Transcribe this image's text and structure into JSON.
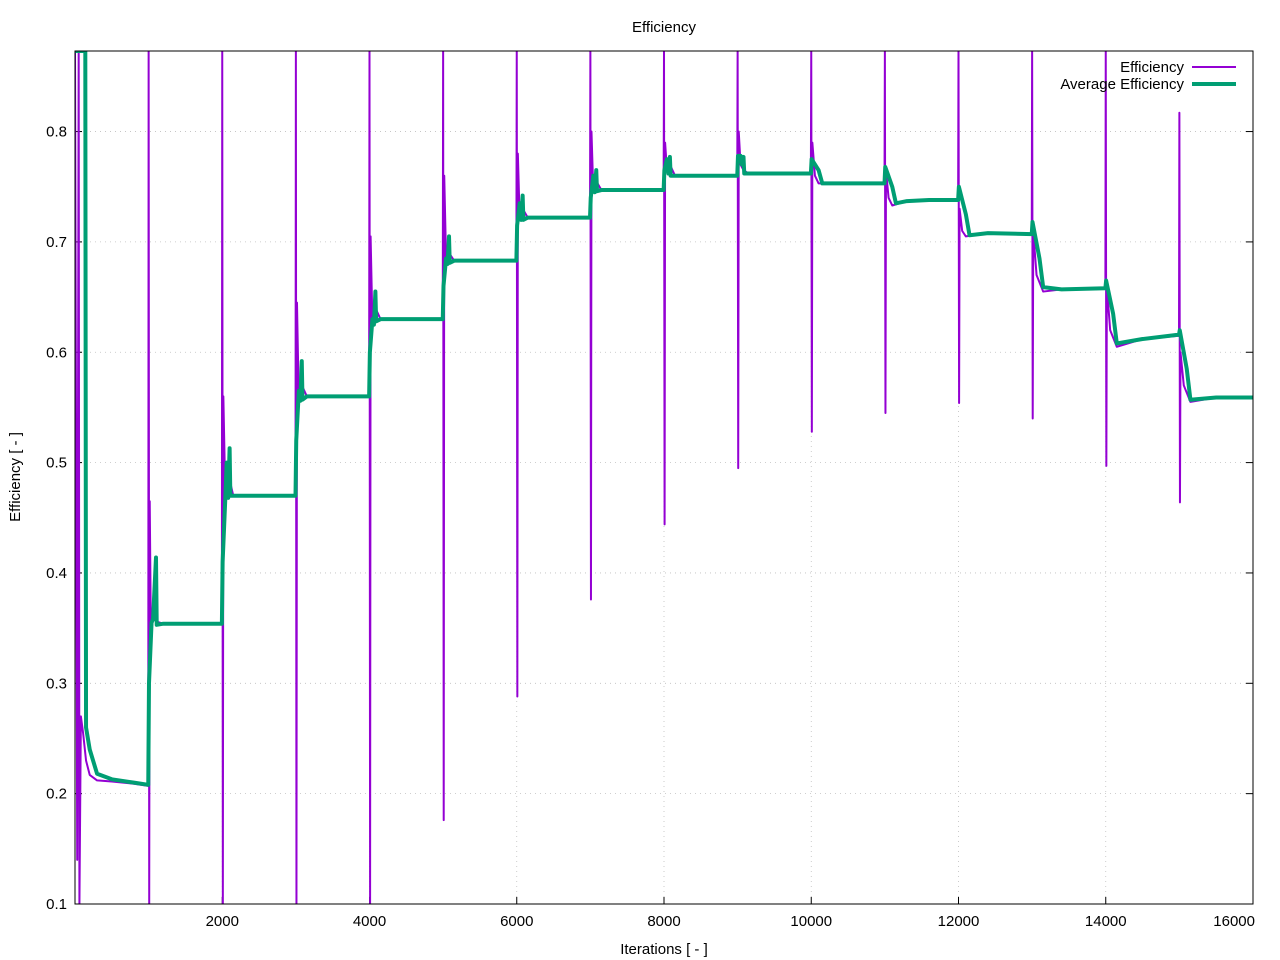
{
  "chart_data": {
    "type": "line",
    "title": "Efficiency",
    "xlabel": "Iterations [ - ]",
    "ylabel": "Efficiency [ - ]",
    "xlim": [
      0,
      16000
    ],
    "ylim": [
      0.1,
      0.873
    ],
    "x_ticks": [
      2000,
      4000,
      6000,
      8000,
      10000,
      12000,
      14000,
      16000
    ],
    "x_tick_labels": [
      "2000",
      "4000",
      "6000",
      "8000",
      "10000",
      "12000",
      "14000",
      "16000"
    ],
    "y_ticks": [
      0.1,
      0.2,
      0.3,
      0.4,
      0.5,
      0.6,
      0.7,
      0.8
    ],
    "y_tick_labels": [
      "0.1",
      "0.2",
      "0.3",
      "0.4",
      "0.5",
      "0.6",
      "0.7",
      "0.8"
    ],
    "grid": true,
    "legend_position": "top-right",
    "series": [
      {
        "name": "Efficiency",
        "color": "#9400d3",
        "points": [
          [
            0,
            0.873
          ],
          [
            30,
            0.14
          ],
          [
            50,
            0.873
          ],
          [
            60,
            0.1
          ],
          [
            80,
            0.27
          ],
          [
            110,
            0.255
          ],
          [
            150,
            0.23
          ],
          [
            200,
            0.217
          ],
          [
            300,
            0.212
          ],
          [
            500,
            0.211
          ],
          [
            800,
            0.209
          ],
          [
            995,
            0.207
          ],
          [
            1000,
            0.873
          ],
          [
            1008,
            0.1
          ],
          [
            1015,
            0.465
          ],
          [
            1030,
            0.35
          ],
          [
            1060,
            0.37
          ],
          [
            1100,
            0.356
          ],
          [
            1200,
            0.354
          ],
          [
            1995,
            0.354
          ],
          [
            2000,
            0.873
          ],
          [
            2008,
            0.1
          ],
          [
            2015,
            0.56
          ],
          [
            2040,
            0.475
          ],
          [
            2080,
            0.49
          ],
          [
            2150,
            0.47
          ],
          [
            2995,
            0.47
          ],
          [
            3000,
            0.873
          ],
          [
            3008,
            0.1
          ],
          [
            3015,
            0.645
          ],
          [
            3040,
            0.555
          ],
          [
            3080,
            0.57
          ],
          [
            3150,
            0.56
          ],
          [
            3995,
            0.56
          ],
          [
            4000,
            0.873
          ],
          [
            4008,
            0.1
          ],
          [
            4015,
            0.705
          ],
          [
            4040,
            0.625
          ],
          [
            4080,
            0.64
          ],
          [
            4150,
            0.63
          ],
          [
            4995,
            0.63
          ],
          [
            5000,
            0.873
          ],
          [
            5008,
            0.176
          ],
          [
            5015,
            0.76
          ],
          [
            5040,
            0.685
          ],
          [
            5080,
            0.69
          ],
          [
            5150,
            0.683
          ],
          [
            5995,
            0.683
          ],
          [
            6000,
            0.873
          ],
          [
            6008,
            0.288
          ],
          [
            6015,
            0.78
          ],
          [
            6040,
            0.72
          ],
          [
            6080,
            0.73
          ],
          [
            6150,
            0.722
          ],
          [
            6995,
            0.722
          ],
          [
            7000,
            0.873
          ],
          [
            7008,
            0.376
          ],
          [
            7015,
            0.8
          ],
          [
            7040,
            0.745
          ],
          [
            7080,
            0.755
          ],
          [
            7150,
            0.747
          ],
          [
            7995,
            0.747
          ],
          [
            8000,
            0.873
          ],
          [
            8008,
            0.444
          ],
          [
            8015,
            0.79
          ],
          [
            8040,
            0.765
          ],
          [
            8080,
            0.77
          ],
          [
            8150,
            0.76
          ],
          [
            8995,
            0.76
          ],
          [
            9000,
            0.873
          ],
          [
            9008,
            0.495
          ],
          [
            9015,
            0.8
          ],
          [
            9040,
            0.77
          ],
          [
            9080,
            0.765
          ],
          [
            9150,
            0.762
          ],
          [
            9995,
            0.762
          ],
          [
            10000,
            0.873
          ],
          [
            10008,
            0.528
          ],
          [
            10015,
            0.79
          ],
          [
            10050,
            0.76
          ],
          [
            10100,
            0.753
          ],
          [
            10200,
            0.753
          ],
          [
            10995,
            0.753
          ],
          [
            11000,
            0.873
          ],
          [
            11008,
            0.545
          ],
          [
            11015,
            0.765
          ],
          [
            11050,
            0.74
          ],
          [
            11100,
            0.733
          ],
          [
            11300,
            0.737
          ],
          [
            11600,
            0.738
          ],
          [
            11995,
            0.738
          ],
          [
            12000,
            0.873
          ],
          [
            12008,
            0.554
          ],
          [
            12015,
            0.73
          ],
          [
            12050,
            0.71
          ],
          [
            12100,
            0.705
          ],
          [
            12400,
            0.708
          ],
          [
            12995,
            0.707
          ],
          [
            13000,
            0.873
          ],
          [
            13008,
            0.54
          ],
          [
            13015,
            0.71
          ],
          [
            13060,
            0.67
          ],
          [
            13150,
            0.655
          ],
          [
            13400,
            0.657
          ],
          [
            13995,
            0.658
          ],
          [
            14000,
            0.873
          ],
          [
            14008,
            0.497
          ],
          [
            14015,
            0.66
          ],
          [
            14060,
            0.62
          ],
          [
            14150,
            0.605
          ],
          [
            14500,
            0.612
          ],
          [
            14995,
            0.615
          ],
          [
            15000,
            0.817
          ],
          [
            15008,
            0.464
          ],
          [
            15015,
            0.6
          ],
          [
            15060,
            0.57
          ],
          [
            15150,
            0.555
          ],
          [
            15500,
            0.559
          ],
          [
            16000,
            0.559
          ]
        ]
      },
      {
        "name": "Average Efficiency",
        "color": "#009e73",
        "points": [
          [
            0,
            0.873
          ],
          [
            90,
            0.873
          ],
          [
            140,
            0.873
          ],
          [
            150,
            0.26
          ],
          [
            200,
            0.24
          ],
          [
            300,
            0.218
          ],
          [
            500,
            0.213
          ],
          [
            800,
            0.21
          ],
          [
            995,
            0.208
          ],
          [
            1005,
            0.3
          ],
          [
            1040,
            0.355
          ],
          [
            1060,
            0.358
          ],
          [
            1100,
            0.414
          ],
          [
            1110,
            0.353
          ],
          [
            1200,
            0.354
          ],
          [
            1995,
            0.354
          ],
          [
            2005,
            0.41
          ],
          [
            2040,
            0.465
          ],
          [
            2060,
            0.5
          ],
          [
            2080,
            0.468
          ],
          [
            2100,
            0.513
          ],
          [
            2110,
            0.47
          ],
          [
            2200,
            0.47
          ],
          [
            2995,
            0.47
          ],
          [
            3005,
            0.52
          ],
          [
            3040,
            0.565
          ],
          [
            3060,
            0.556
          ],
          [
            3080,
            0.592
          ],
          [
            3090,
            0.557
          ],
          [
            3150,
            0.56
          ],
          [
            3995,
            0.56
          ],
          [
            4005,
            0.6
          ],
          [
            4040,
            0.63
          ],
          [
            4060,
            0.625
          ],
          [
            4080,
            0.655
          ],
          [
            4090,
            0.628
          ],
          [
            4150,
            0.63
          ],
          [
            4995,
            0.63
          ],
          [
            5005,
            0.66
          ],
          [
            5040,
            0.685
          ],
          [
            5060,
            0.68
          ],
          [
            5080,
            0.705
          ],
          [
            5090,
            0.681
          ],
          [
            5150,
            0.683
          ],
          [
            5995,
            0.683
          ],
          [
            6005,
            0.715
          ],
          [
            6040,
            0.735
          ],
          [
            6060,
            0.72
          ],
          [
            6080,
            0.742
          ],
          [
            6090,
            0.72
          ],
          [
            6150,
            0.722
          ],
          [
            6995,
            0.722
          ],
          [
            7005,
            0.74
          ],
          [
            7040,
            0.76
          ],
          [
            7060,
            0.745
          ],
          [
            7080,
            0.765
          ],
          [
            7090,
            0.746
          ],
          [
            7150,
            0.747
          ],
          [
            7995,
            0.747
          ],
          [
            8005,
            0.765
          ],
          [
            8040,
            0.775
          ],
          [
            8060,
            0.762
          ],
          [
            8080,
            0.777
          ],
          [
            8090,
            0.76
          ],
          [
            8150,
            0.76
          ],
          [
            8995,
            0.76
          ],
          [
            9005,
            0.778
          ],
          [
            9040,
            0.778
          ],
          [
            9060,
            0.77
          ],
          [
            9080,
            0.777
          ],
          [
            9090,
            0.762
          ],
          [
            9150,
            0.762
          ],
          [
            9995,
            0.762
          ],
          [
            10005,
            0.775
          ],
          [
            10100,
            0.765
          ],
          [
            10150,
            0.753
          ],
          [
            10300,
            0.753
          ],
          [
            10995,
            0.753
          ],
          [
            11005,
            0.768
          ],
          [
            11100,
            0.75
          ],
          [
            11150,
            0.735
          ],
          [
            11300,
            0.737
          ],
          [
            11600,
            0.738
          ],
          [
            11995,
            0.738
          ],
          [
            12005,
            0.75
          ],
          [
            12100,
            0.725
          ],
          [
            12150,
            0.706
          ],
          [
            12400,
            0.708
          ],
          [
            12995,
            0.707
          ],
          [
            13005,
            0.718
          ],
          [
            13100,
            0.685
          ],
          [
            13150,
            0.659
          ],
          [
            13400,
            0.657
          ],
          [
            13995,
            0.658
          ],
          [
            14005,
            0.665
          ],
          [
            14100,
            0.635
          ],
          [
            14150,
            0.608
          ],
          [
            14500,
            0.612
          ],
          [
            14995,
            0.616
          ],
          [
            15005,
            0.62
          ],
          [
            15100,
            0.585
          ],
          [
            15150,
            0.557
          ],
          [
            15500,
            0.559
          ],
          [
            16000,
            0.559
          ]
        ]
      }
    ]
  }
}
